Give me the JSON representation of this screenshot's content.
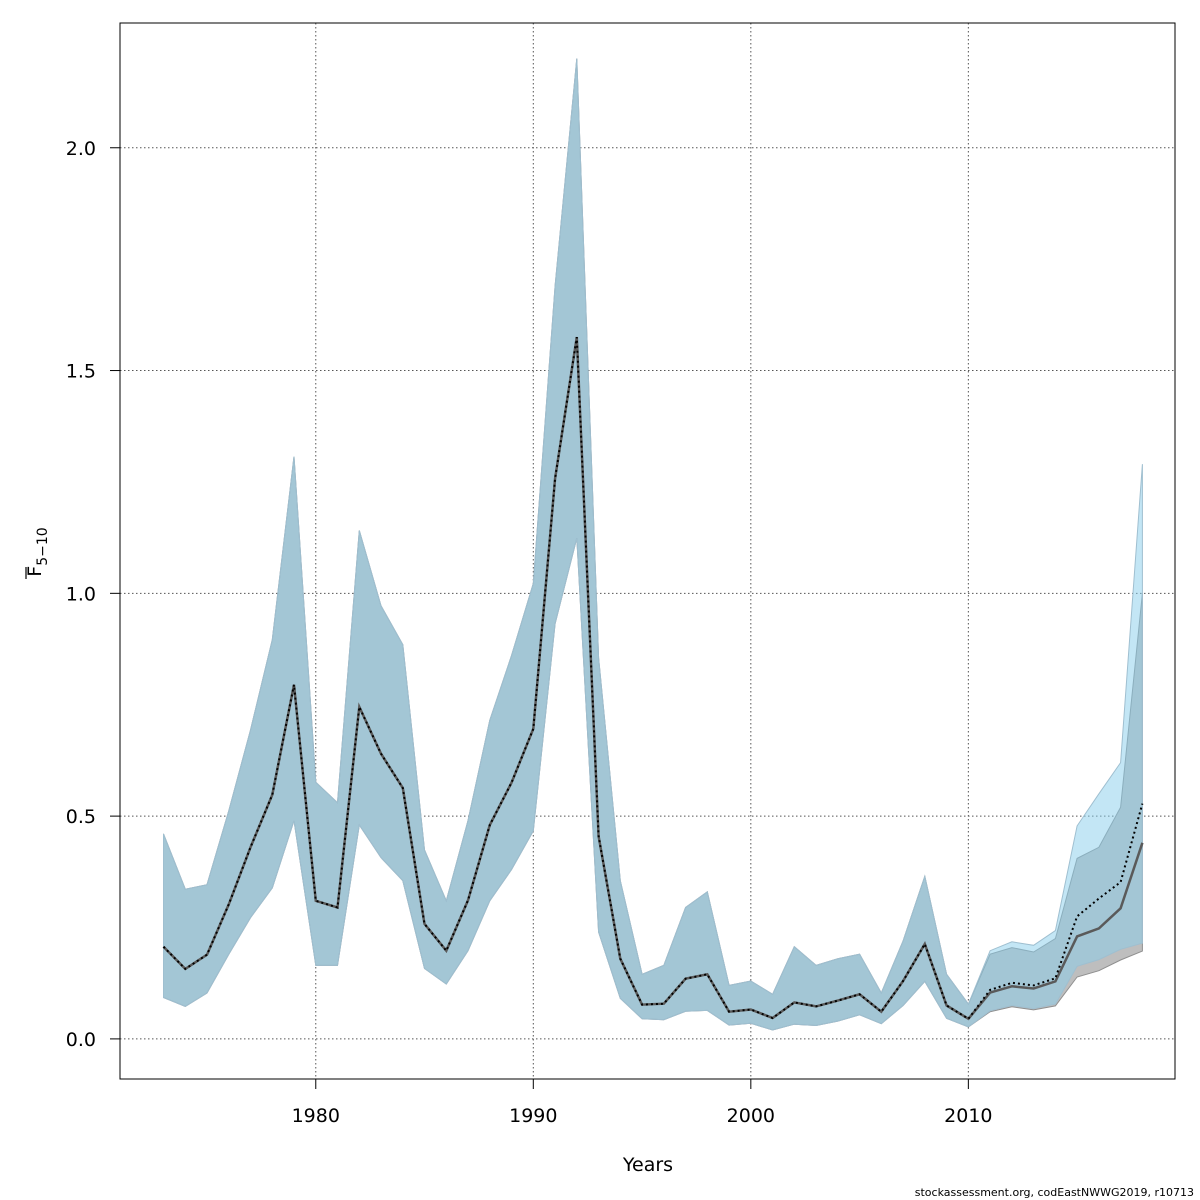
{
  "chart_data": {
    "type": "area",
    "xlabel": "Years",
    "ylabel": {
      "base": "F",
      "subscript": "5−10"
    },
    "footer": "stockassessment.org, codEastNWWG2019, r10713",
    "xlim": [
      1971,
      2019.5
    ],
    "ylim": [
      -0.09,
      2.28
    ],
    "xticks": [
      1980,
      1990,
      2000,
      2010
    ],
    "yticks": [
      0.0,
      0.5,
      1.0,
      1.5,
      2.0
    ],
    "ytick_labels": [
      "0.0",
      "0.5",
      "1.0",
      "1.5",
      "2.0"
    ],
    "grid": true,
    "colors": {
      "band_grey": "#bebebe",
      "band_blue": "#87ceeb",
      "line_grey": "#5a5a5a",
      "line_blue": "#000000",
      "grid": "#555555"
    },
    "years": [
      1973,
      1974,
      1975,
      1976,
      1977,
      1978,
      1979,
      1980,
      1981,
      1982,
      1983,
      1984,
      1985,
      1986,
      1987,
      1988,
      1989,
      1990,
      1991,
      1992,
      1993,
      1994,
      1995,
      1996,
      1997,
      1998,
      1999,
      2000,
      2001,
      2002,
      2003,
      2004,
      2005,
      2006,
      2007,
      2008,
      2009,
      2010,
      2011,
      2012,
      2013,
      2014,
      2015,
      2016,
      2017,
      2018
    ],
    "series": [
      {
        "style": "solid",
        "estimate": [
          0.207,
          0.157,
          0.189,
          0.302,
          0.43,
          0.548,
          0.795,
          0.31,
          0.295,
          0.745,
          0.64,
          0.563,
          0.258,
          0.198,
          0.311,
          0.48,
          0.575,
          0.696,
          1.258,
          1.575,
          0.455,
          0.18,
          0.077,
          0.079,
          0.135,
          0.145,
          0.061,
          0.066,
          0.047,
          0.082,
          0.073,
          0.086,
          0.1,
          0.061,
          0.13,
          0.213,
          0.075,
          0.045,
          0.104,
          0.118,
          0.113,
          0.129,
          0.23,
          0.248,
          0.293,
          0.44
        ],
        "lower": [
          0.093,
          0.073,
          0.103,
          0.19,
          0.272,
          0.339,
          0.49,
          0.165,
          0.165,
          0.48,
          0.407,
          0.355,
          0.158,
          0.123,
          0.198,
          0.31,
          0.38,
          0.467,
          0.932,
          1.124,
          0.24,
          0.091,
          0.045,
          0.043,
          0.062,
          0.064,
          0.031,
          0.035,
          0.02,
          0.033,
          0.03,
          0.04,
          0.054,
          0.034,
          0.075,
          0.129,
          0.046,
          0.027,
          0.061,
          0.072,
          0.065,
          0.074,
          0.139,
          0.153,
          0.177,
          0.197
        ],
        "upper": [
          0.46,
          0.336,
          0.346,
          0.512,
          0.693,
          0.896,
          1.307,
          0.576,
          0.53,
          1.141,
          0.972,
          0.885,
          0.424,
          0.31,
          0.49,
          0.715,
          0.86,
          1.022,
          1.69,
          2.2,
          0.855,
          0.355,
          0.145,
          0.165,
          0.295,
          0.33,
          0.12,
          0.13,
          0.1,
          0.207,
          0.165,
          0.18,
          0.19,
          0.103,
          0.22,
          0.365,
          0.145,
          0.078,
          0.19,
          0.205,
          0.195,
          0.225,
          0.405,
          0.43,
          0.52,
          1.0
        ]
      },
      {
        "style": "dotted",
        "estimate": [
          0.207,
          0.157,
          0.189,
          0.302,
          0.43,
          0.548,
          0.795,
          0.31,
          0.295,
          0.745,
          0.64,
          0.563,
          0.258,
          0.198,
          0.311,
          0.48,
          0.575,
          0.696,
          1.258,
          1.575,
          0.455,
          0.18,
          0.077,
          0.079,
          0.135,
          0.145,
          0.061,
          0.066,
          0.047,
          0.082,
          0.073,
          0.086,
          0.1,
          0.061,
          0.13,
          0.213,
          0.075,
          0.045,
          0.11,
          0.126,
          0.12,
          0.136,
          0.275,
          0.315,
          0.352,
          0.528
        ],
        "lower": [
          0.093,
          0.073,
          0.103,
          0.19,
          0.272,
          0.339,
          0.49,
          0.165,
          0.165,
          0.48,
          0.407,
          0.355,
          0.158,
          0.123,
          0.198,
          0.31,
          0.38,
          0.467,
          0.932,
          1.124,
          0.24,
          0.091,
          0.045,
          0.043,
          0.062,
          0.064,
          0.031,
          0.035,
          0.02,
          0.033,
          0.03,
          0.04,
          0.054,
          0.034,
          0.075,
          0.129,
          0.046,
          0.027,
          0.063,
          0.075,
          0.068,
          0.078,
          0.163,
          0.178,
          0.201,
          0.215
        ],
        "upper": [
          0.46,
          0.336,
          0.346,
          0.512,
          0.693,
          0.896,
          1.307,
          0.576,
          0.53,
          1.141,
          0.972,
          0.885,
          0.424,
          0.31,
          0.49,
          0.715,
          0.86,
          1.022,
          1.69,
          2.2,
          0.855,
          0.355,
          0.145,
          0.165,
          0.295,
          0.33,
          0.12,
          0.13,
          0.1,
          0.207,
          0.165,
          0.18,
          0.19,
          0.103,
          0.22,
          0.365,
          0.145,
          0.078,
          0.198,
          0.218,
          0.21,
          0.243,
          0.478,
          0.55,
          0.62,
          1.29
        ]
      }
    ]
  }
}
